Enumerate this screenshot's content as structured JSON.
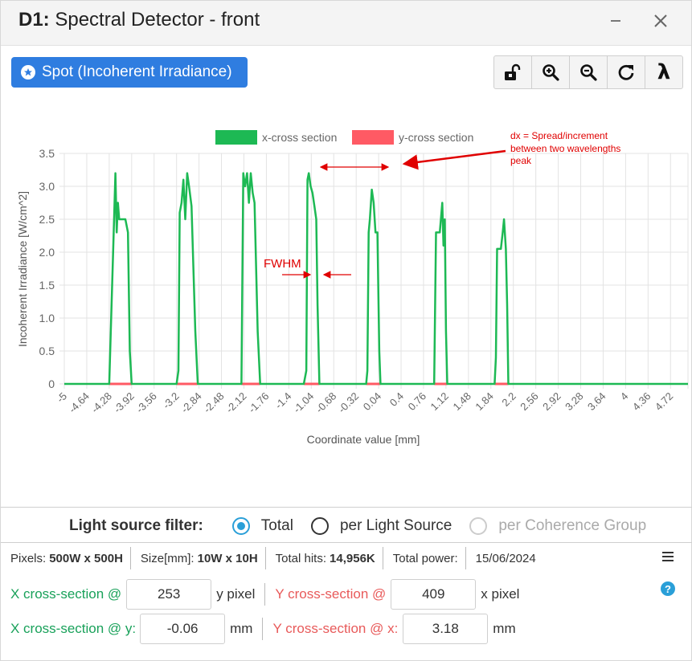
{
  "window": {
    "title_prefix": "D1:",
    "title_text": "Spectral Detector - front"
  },
  "spot_button": {
    "label": "Spot (Incoherent Irradiance)"
  },
  "toolbar": {
    "buttons": [
      "unlock-icon",
      "zoom-in-icon",
      "zoom-out-icon",
      "refresh-icon",
      "lambda-icon"
    ],
    "lambda_label": "λ"
  },
  "colors": {
    "series_x": "#1db954",
    "series_y": "#ff5a64",
    "annotation": "#e00000",
    "accent_blue": "#2f7de0",
    "radio_blue": "#2a9fd8"
  },
  "chart_data": {
    "type": "line",
    "title": "",
    "xlabel": "Coordinate value [mm]",
    "ylabel": "Incoherent Irradiance [W/cm^2]",
    "xlim": [
      -5,
      5
    ],
    "ylim": [
      0,
      3.5
    ],
    "yticks": [
      "0",
      "0.5",
      "1.0",
      "1.5",
      "2.0",
      "2.5",
      "3.0",
      "3.5"
    ],
    "xticks": [
      "-5",
      "-4.64",
      "-4.28",
      "-3.92",
      "-3.56",
      "-3.2",
      "-2.84",
      "-2.48",
      "-2.12",
      "-1.76",
      "-1.4",
      "-1.04",
      "-0.68",
      "-0.32",
      "0.04",
      "0.4",
      "0.76",
      "1.12",
      "1.48",
      "1.84",
      "2.2",
      "2.56",
      "2.92",
      "3.28",
      "3.64",
      "4",
      "4.36",
      "4.72"
    ],
    "grid": true,
    "legend": "top-center",
    "series": [
      {
        "name": "x-cross section",
        "points": [
          [
            -5,
            0
          ],
          [
            -4.28,
            0
          ],
          [
            -4.22,
            1.9
          ],
          [
            -4.18,
            3.2
          ],
          [
            -4.16,
            2.3
          ],
          [
            -4.14,
            2.75
          ],
          [
            -4.12,
            2.5
          ],
          [
            -4.02,
            2.5
          ],
          [
            -3.98,
            2.3
          ],
          [
            -3.95,
            0.5
          ],
          [
            -3.92,
            0
          ],
          [
            -3.2,
            0
          ],
          [
            -3.17,
            0.2
          ],
          [
            -3.15,
            2.6
          ],
          [
            -3.12,
            2.75
          ],
          [
            -3.09,
            3.1
          ],
          [
            -3.06,
            2.5
          ],
          [
            -3.03,
            3.2
          ],
          [
            -3.0,
            3.0
          ],
          [
            -2.96,
            2.7
          ],
          [
            -2.9,
            0.8
          ],
          [
            -2.86,
            0
          ],
          [
            -2.16,
            0
          ],
          [
            -2.13,
            3.2
          ],
          [
            -2.1,
            3.0
          ],
          [
            -2.07,
            3.2
          ],
          [
            -2.04,
            2.75
          ],
          [
            -2.01,
            3.2
          ],
          [
            -1.98,
            2.9
          ],
          [
            -1.95,
            2.75
          ],
          [
            -1.9,
            0.8
          ],
          [
            -1.86,
            0
          ],
          [
            -1.16,
            0
          ],
          [
            -1.12,
            0.2
          ],
          [
            -1.1,
            3.1
          ],
          [
            -1.08,
            3.2
          ],
          [
            -1.05,
            3.0
          ],
          [
            -1.02,
            2.9
          ],
          [
            -0.99,
            2.7
          ],
          [
            -0.96,
            2.5
          ],
          [
            -0.94,
            1.2
          ],
          [
            -0.91,
            0
          ],
          [
            -0.16,
            0
          ],
          [
            -0.14,
            0.2
          ],
          [
            -0.12,
            2.3
          ],
          [
            -0.1,
            2.5
          ],
          [
            -0.07,
            2.95
          ],
          [
            -0.04,
            2.75
          ],
          [
            -0.01,
            2.3
          ],
          [
            0.02,
            2.3
          ],
          [
            0.05,
            0.5
          ],
          [
            0.07,
            0
          ],
          [
            0.93,
            0
          ],
          [
            0.96,
            2.3
          ],
          [
            1.02,
            2.3
          ],
          [
            1.06,
            2.75
          ],
          [
            1.08,
            2.1
          ],
          [
            1.1,
            2.5
          ],
          [
            1.12,
            0.8
          ],
          [
            1.14,
            0
          ],
          [
            1.9,
            0
          ],
          [
            1.92,
            0.4
          ],
          [
            1.94,
            2.05
          ],
          [
            2.0,
            2.05
          ],
          [
            2.03,
            2.3
          ],
          [
            2.05,
            2.5
          ],
          [
            2.08,
            2.05
          ],
          [
            2.1,
            1.2
          ],
          [
            2.12,
            0
          ],
          [
            5,
            0
          ]
        ]
      },
      {
        "name": "y-cross section",
        "points": [
          [
            -5,
            0
          ],
          [
            5,
            0
          ]
        ],
        "highlights": [
          [
            -4.28,
            -3.92
          ],
          [
            -3.2,
            -2.86
          ],
          [
            -2.16,
            -1.86
          ],
          [
            -1.16,
            -0.91
          ],
          [
            -0.16,
            0.07
          ],
          [
            0.93,
            1.14
          ],
          [
            1.9,
            2.12
          ]
        ]
      }
    ],
    "annotations": [
      {
        "text": "dx = Spread/increment"
      },
      {
        "text": "between two wavelengths"
      },
      {
        "text": "peak"
      },
      {
        "text": "FWHM"
      }
    ]
  },
  "filter": {
    "label": "Light source filter:",
    "options": [
      {
        "label": "Total",
        "checked": true,
        "disabled": false
      },
      {
        "label": "per Light Source",
        "checked": false,
        "disabled": false
      },
      {
        "label": "per Coherence Group",
        "checked": false,
        "disabled": true
      }
    ]
  },
  "info": {
    "pixels_label": "Pixels:",
    "pixels_value": "500W x 500H",
    "size_label": "Size[mm]:",
    "size_value": "10W x 10H",
    "hits_label": "Total hits:",
    "hits_value": "14,956K",
    "power_label": "Total power:",
    "date": "15/06/2024"
  },
  "cross_section": {
    "x_pixel_label": "X cross-section @",
    "x_pixel_value": "253",
    "x_pixel_unit": "y pixel",
    "y_pixel_label": "Y cross-section @",
    "y_pixel_value": "409",
    "y_pixel_unit": "x pixel",
    "x_mm_label": "X cross-section @ y:",
    "x_mm_value": "-0.06",
    "x_mm_unit": "mm",
    "y_mm_label": "Y cross-section @ x:",
    "y_mm_value": "3.18",
    "y_mm_unit": "mm"
  },
  "help_label": "?"
}
